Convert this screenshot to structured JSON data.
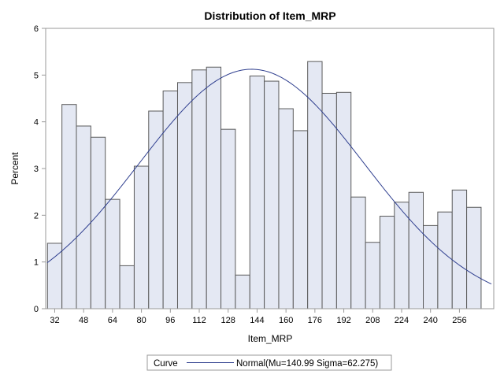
{
  "chart_data": {
    "type": "bar",
    "title": "Distribution of Item_MRP",
    "xlabel": "Item_MRP",
    "ylabel": "Percent",
    "bin_width": 8,
    "bin_start": 28,
    "xlim": [
      27,
      275
    ],
    "ylim": [
      0,
      6
    ],
    "x_ticks": [
      "32",
      "48",
      "64",
      "80",
      "96",
      "112",
      "128",
      "144",
      "160",
      "176",
      "192",
      "208",
      "224",
      "240",
      "256"
    ],
    "y_ticks": [
      "0",
      "1",
      "2",
      "3",
      "4",
      "5",
      "6"
    ],
    "values": [
      1.4,
      4.37,
      3.91,
      3.67,
      2.34,
      0.92,
      3.05,
      4.23,
      4.66,
      4.84,
      5.11,
      5.17,
      3.84,
      0.72,
      4.98,
      4.87,
      4.28,
      3.81,
      5.29,
      4.61,
      4.63,
      2.39,
      1.42,
      1.98,
      2.28,
      2.49,
      1.78,
      2.07,
      2.54,
      2.17
    ],
    "curve": {
      "type": "normal",
      "mu": 140.99,
      "sigma": 62.275
    },
    "grid": false,
    "legend_position": "bottom"
  },
  "legend": {
    "title": "Curve",
    "entry": "Normal(Mu=140.99 Sigma=62.275)",
    "line_color": "#2f3f8f"
  },
  "colors": {
    "bar_fill": "#e4e8f3",
    "bar_stroke": "#5a5a5a",
    "curve": "#2f3f8f"
  }
}
